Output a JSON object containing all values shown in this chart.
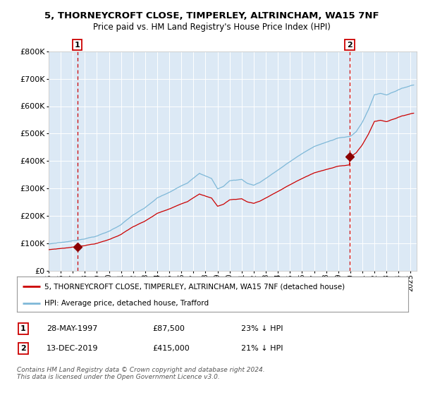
{
  "title": "5, THORNEYCROFT CLOSE, TIMPERLEY, ALTRINCHAM, WA15 7NF",
  "subtitle": "Price paid vs. HM Land Registry's House Price Index (HPI)",
  "legend_line1": "5, THORNEYCROFT CLOSE, TIMPERLEY, ALTRINCHAM, WA15 7NF (detached house)",
  "legend_line2": "HPI: Average price, detached house, Trafford",
  "transaction1_date": "28-MAY-1997",
  "transaction1_price": 87500,
  "transaction1_note": "23% ↓ HPI",
  "transaction2_date": "13-DEC-2019",
  "transaction2_price": 415000,
  "transaction2_note": "21% ↓ HPI",
  "footer": "Contains HM Land Registry data © Crown copyright and database right 2024.\nThis data is licensed under the Open Government Licence v3.0.",
  "hpi_color": "#7eb8d8",
  "price_color": "#cc0000",
  "plot_bg": "#dce9f5",
  "grid_color": "#ffffff",
  "vline_color": "#cc0000",
  "marker_color": "#8b0000",
  "ylim": [
    0,
    800000
  ],
  "yticks": [
    0,
    100000,
    200000,
    300000,
    400000,
    500000,
    600000,
    700000,
    800000
  ],
  "transaction1_x": 1997.38,
  "transaction2_x": 2019.95
}
